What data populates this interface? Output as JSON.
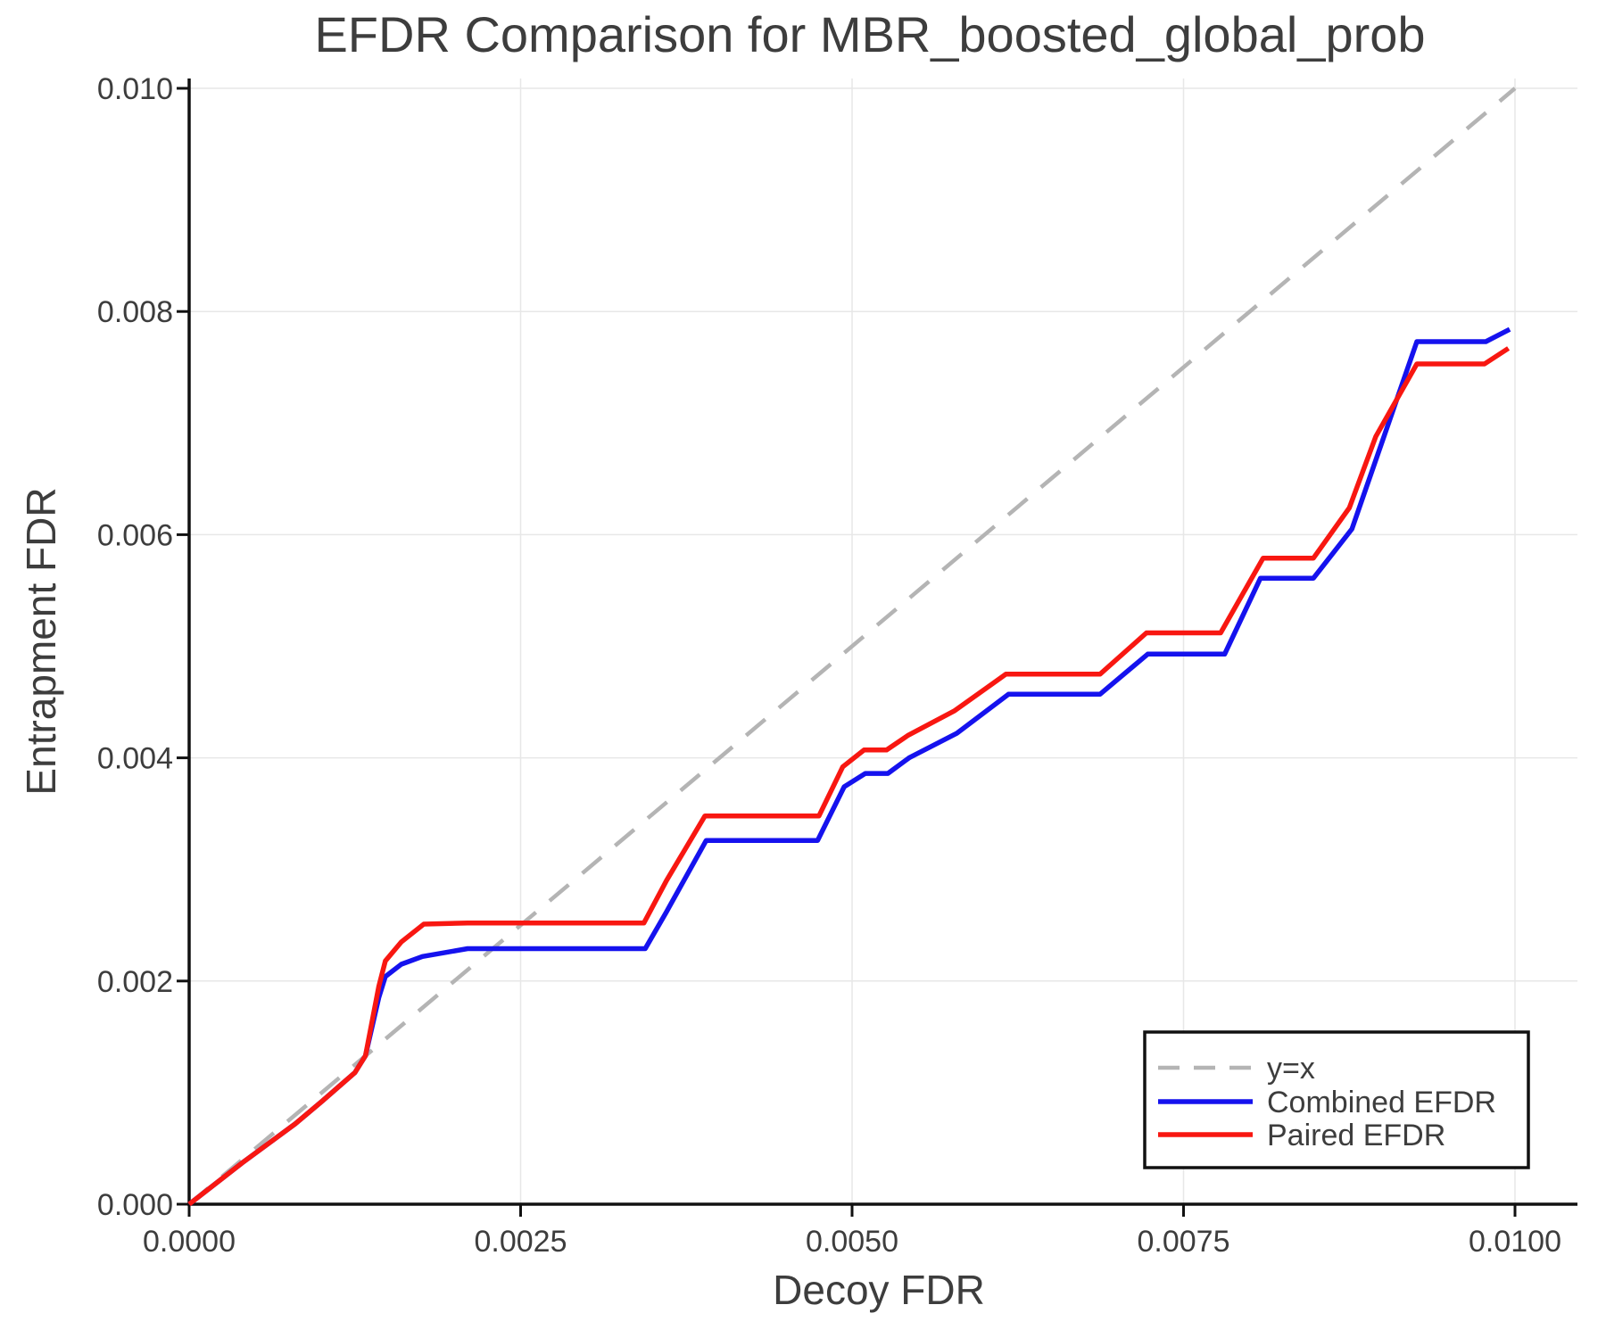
{
  "figure": {
    "title": "EFDR Comparison for MBR_boosted_global_prob"
  },
  "colors": {
    "background": "#ffffff",
    "text": "#3d3d3d",
    "grid": "#e7e7e7",
    "spine": "#111111",
    "reference": "#b4b4b4",
    "combined": "#1512ee",
    "paired": "#f81711"
  },
  "chart_data": {
    "type": "line",
    "title": "EFDR Comparison for MBR_boosted_global_prob",
    "xlabel": "Decoy FDR",
    "ylabel": "Entrapment FDR",
    "xlim": [
      0.0,
      0.0105
    ],
    "ylim": [
      0.0,
      0.0101
    ],
    "grid": true,
    "x_ticks": [
      {
        "value": 0.0,
        "label": "0.0000"
      },
      {
        "value": 0.0025,
        "label": "0.0025"
      },
      {
        "value": 0.005,
        "label": "0.0050"
      },
      {
        "value": 0.0075,
        "label": "0.0075"
      },
      {
        "value": 0.01,
        "label": "0.0100"
      }
    ],
    "y_ticks": [
      {
        "value": 0.0,
        "label": "0.000"
      },
      {
        "value": 0.002,
        "label": "0.002"
      },
      {
        "value": 0.004,
        "label": "0.004"
      },
      {
        "value": 0.006,
        "label": "0.006"
      },
      {
        "value": 0.008,
        "label": "0.008"
      },
      {
        "value": 0.01,
        "label": "0.010"
      }
    ],
    "legend": {
      "position": "lower right"
    },
    "series": [
      {
        "name": "y=x",
        "color": "#b4b4b4",
        "dash": true,
        "points": [
          [
            0.0,
            0.0
          ],
          [
            0.01,
            0.01
          ]
        ]
      },
      {
        "name": "Combined EFDR",
        "color": "#1512ee",
        "dash": false,
        "points": [
          [
            0.0,
            0.0
          ],
          [
            0.0004,
            0.00037
          ],
          [
            0.0008,
            0.00072
          ],
          [
            0.001,
            0.00092
          ],
          [
            0.00125,
            0.00118
          ],
          [
            0.00133,
            0.00133
          ],
          [
            0.00143,
            0.00185
          ],
          [
            0.00148,
            0.00204
          ],
          [
            0.0016,
            0.00215
          ],
          [
            0.00176,
            0.00222
          ],
          [
            0.0021,
            0.00229
          ],
          [
            0.00344,
            0.00229
          ],
          [
            0.0036,
            0.00262
          ],
          [
            0.0039,
            0.00326
          ],
          [
            0.00474,
            0.00326
          ],
          [
            0.00494,
            0.00374
          ],
          [
            0.0051,
            0.00386
          ],
          [
            0.00527,
            0.00386
          ],
          [
            0.00543,
            0.004
          ],
          [
            0.00579,
            0.00422
          ],
          [
            0.00618,
            0.00457
          ],
          [
            0.00687,
            0.00457
          ],
          [
            0.00723,
            0.00493
          ],
          [
            0.00781,
            0.00493
          ],
          [
            0.00808,
            0.00561
          ],
          [
            0.00848,
            0.00561
          ],
          [
            0.00877,
            0.00605
          ],
          [
            0.00926,
            0.00773
          ],
          [
            0.00978,
            0.00773
          ],
          [
            0.00996,
            0.00784
          ]
        ]
      },
      {
        "name": "Paired EFDR",
        "color": "#f81711",
        "dash": false,
        "points": [
          [
            0.0,
            0.0
          ],
          [
            0.0004,
            0.00037
          ],
          [
            0.0008,
            0.00072
          ],
          [
            0.001,
            0.00092
          ],
          [
            0.00125,
            0.00118
          ],
          [
            0.00133,
            0.00133
          ],
          [
            0.00143,
            0.00195
          ],
          [
            0.00148,
            0.00218
          ],
          [
            0.0016,
            0.00235
          ],
          [
            0.00177,
            0.00251
          ],
          [
            0.0021,
            0.00252
          ],
          [
            0.00343,
            0.00252
          ],
          [
            0.0036,
            0.0029
          ],
          [
            0.00389,
            0.00348
          ],
          [
            0.00475,
            0.00348
          ],
          [
            0.00493,
            0.00392
          ],
          [
            0.00509,
            0.00407
          ],
          [
            0.00526,
            0.00407
          ],
          [
            0.00542,
            0.0042
          ],
          [
            0.00577,
            0.00442
          ],
          [
            0.00616,
            0.00475
          ],
          [
            0.00687,
            0.00475
          ],
          [
            0.00722,
            0.00512
          ],
          [
            0.00778,
            0.00512
          ],
          [
            0.0081,
            0.00579
          ],
          [
            0.00848,
            0.00579
          ],
          [
            0.00875,
            0.00624
          ],
          [
            0.00895,
            0.00688
          ],
          [
            0.00926,
            0.00753
          ],
          [
            0.00977,
            0.00753
          ],
          [
            0.00995,
            0.00767
          ]
        ]
      }
    ]
  }
}
